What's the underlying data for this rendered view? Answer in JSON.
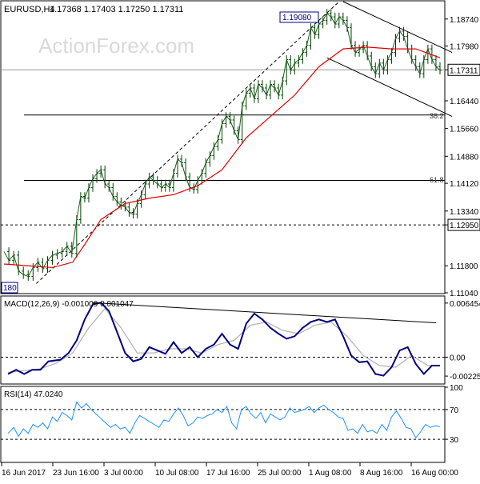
{
  "chart_data": {
    "type": "candlestick",
    "symbol": "EURUSD,H4",
    "ohlc_readout": "1.17368 1.17403 1.17250 1.17311",
    "watermark": "ActionForex.com",
    "price_axis": {
      "ticks": [
        1.1874,
        1.1798,
        1.17311,
        1.1644,
        1.1566,
        1.1488,
        1.1412,
        1.1334,
        1.1295,
        1.118,
        1.1104
      ],
      "tick_labels": [
        "1.18740",
        "1.17980",
        "1.17311",
        "1.16440",
        "1.15660",
        "1.14880",
        "1.14120",
        "1.13340",
        "1.12950",
        "1.11800",
        "1.11040"
      ],
      "highlighted": [
        "1.17311",
        "1.12950"
      ],
      "range": [
        1.1104,
        1.1923
      ]
    },
    "x_axis": {
      "labels": [
        "16 Jun 2017",
        "23 Jun 16:00",
        "3 Jul 00:00",
        "10 Jul 08:00",
        "17 Jul 16:00",
        "25 Jul 00:00",
        "1 Aug 08:00",
        "8 Aug 16:00",
        "16 Aug 00:00"
      ]
    },
    "price_labels": {
      "high": "1.19080",
      "low": "180",
      "fib_382": "38.2",
      "fib_618": "61.8"
    },
    "price_levels": {
      "last": 1.17311,
      "support": 1.1295,
      "fib_382": 1.1604,
      "fib_618": 1.142,
      "high": 1.1908
    },
    "price_path": [
      [
        0,
        1.122
      ],
      [
        6,
        1.1195
      ],
      [
        12,
        1.121
      ],
      [
        18,
        1.1165
      ],
      [
        24,
        1.1155
      ],
      [
        30,
        1.115
      ],
      [
        36,
        1.1175
      ],
      [
        42,
        1.119
      ],
      [
        48,
        1.1172
      ],
      [
        54,
        1.1195
      ],
      [
        60,
        1.121
      ],
      [
        66,
        1.1215
      ],
      [
        72,
        1.122
      ],
      [
        78,
        1.1235
      ],
      [
        84,
        1.1215
      ],
      [
        90,
        1.131
      ],
      [
        95,
        1.1375
      ],
      [
        100,
        1.137
      ],
      [
        105,
        1.14
      ],
      [
        110,
        1.1425
      ],
      [
        115,
        1.144
      ],
      [
        120,
        1.145
      ],
      [
        125,
        1.141
      ],
      [
        130,
        1.14
      ],
      [
        135,
        1.1375
      ],
      [
        140,
        1.136
      ],
      [
        145,
        1.135
      ],
      [
        150,
        1.1345
      ],
      [
        155,
        1.133
      ],
      [
        160,
        1.1325
      ],
      [
        165,
        1.1355
      ],
      [
        170,
        1.138
      ],
      [
        175,
        1.141
      ],
      [
        180,
        1.143
      ],
      [
        185,
        1.142
      ],
      [
        190,
        1.141
      ],
      [
        195,
        1.14
      ],
      [
        200,
        1.141
      ],
      [
        205,
        1.14
      ],
      [
        210,
        1.144
      ],
      [
        215,
        1.148
      ],
      [
        220,
        1.147
      ],
      [
        225,
        1.143
      ],
      [
        230,
        1.14
      ],
      [
        235,
        1.1395
      ],
      [
        240,
        1.142
      ],
      [
        245,
        1.144
      ],
      [
        250,
        1.147
      ],
      [
        255,
        1.149
      ],
      [
        260,
        1.1515
      ],
      [
        265,
        1.1535
      ],
      [
        270,
        1.158
      ],
      [
        275,
        1.16
      ],
      [
        280,
        1.159
      ],
      [
        285,
        1.156
      ],
      [
        290,
        1.1535
      ],
      [
        295,
        1.163
      ],
      [
        300,
        1.1665
      ],
      [
        305,
        1.168
      ],
      [
        310,
        1.165
      ],
      [
        315,
        1.169
      ],
      [
        320,
        1.168
      ],
      [
        325,
        1.166
      ],
      [
        330,
        1.169
      ],
      [
        335,
        1.168
      ],
      [
        340,
        1.166
      ],
      [
        345,
        1.17
      ],
      [
        350,
        1.176
      ],
      [
        355,
        1.173
      ],
      [
        360,
        1.175
      ],
      [
        365,
        1.176
      ],
      [
        370,
        1.178
      ],
      [
        375,
        1.18
      ],
      [
        380,
        1.185
      ],
      [
        385,
        1.183
      ],
      [
        390,
        1.186
      ],
      [
        395,
        1.187
      ],
      [
        400,
        1.189
      ],
      [
        405,
        1.188
      ],
      [
        410,
        1.186
      ],
      [
        415,
        1.188
      ],
      [
        420,
        1.187
      ],
      [
        425,
        1.185
      ],
      [
        430,
        1.18
      ],
      [
        435,
        1.178
      ],
      [
        440,
        1.179
      ],
      [
        445,
        1.18
      ],
      [
        450,
        1.177
      ],
      [
        455,
        1.174
      ],
      [
        460,
        1.172
      ],
      [
        465,
        1.175
      ],
      [
        470,
        1.173
      ],
      [
        475,
        1.176
      ],
      [
        480,
        1.178
      ],
      [
        485,
        1.182
      ],
      [
        490,
        1.184
      ],
      [
        495,
        1.1825
      ],
      [
        500,
        1.179
      ],
      [
        505,
        1.176
      ],
      [
        510,
        1.174
      ],
      [
        515,
        1.172
      ],
      [
        520,
        1.176
      ],
      [
        525,
        1.179
      ],
      [
        530,
        1.176
      ],
      [
        535,
        1.174
      ],
      [
        540,
        1.173
      ]
    ],
    "ma_path": [
      [
        0,
        1.1185
      ],
      [
        30,
        1.118
      ],
      [
        60,
        1.1175
      ],
      [
        85,
        1.119
      ],
      [
        100,
        1.124
      ],
      [
        120,
        1.131
      ],
      [
        150,
        1.1355
      ],
      [
        180,
        1.137
      ],
      [
        210,
        1.138
      ],
      [
        240,
        1.1405
      ],
      [
        270,
        1.145
      ],
      [
        300,
        1.154
      ],
      [
        330,
        1.16
      ],
      [
        360,
        1.166
      ],
      [
        390,
        1.174
      ],
      [
        420,
        1.179
      ],
      [
        450,
        1.1795
      ],
      [
        480,
        1.179
      ],
      [
        510,
        1.179
      ],
      [
        540,
        1.1765
      ]
    ],
    "channel_upper": [
      [
        420,
        1.1923
      ],
      [
        555,
        1.178
      ]
    ],
    "channel_lower": [
      [
        400,
        1.1765
      ],
      [
        555,
        1.16
      ]
    ],
    "trend_dashed": [
      [
        40,
        1.113
      ],
      [
        415,
        1.1923
      ]
    ],
    "macd": {
      "label": "MACD(12,26,9) -0.001009 0.001047",
      "ticks": [
        0.006454,
        0.0,
        -0.002252
      ],
      "tick_labels": [
        "0.006454",
        "0.00",
        "-0.00225"
      ],
      "range": [
        -0.0031,
        0.0072
      ],
      "trend_line": [
        [
          110,
          0.0065
        ],
        [
          535,
          0.0041
        ]
      ],
      "main": [
        [
          5,
          -0.002
        ],
        [
          15,
          -0.0015
        ],
        [
          25,
          -0.002
        ],
        [
          35,
          -0.0015
        ],
        [
          45,
          -0.0015
        ],
        [
          55,
          -0.0005
        ],
        [
          70,
          -0.0003
        ],
        [
          80,
          0.0005
        ],
        [
          90,
          0.002
        ],
        [
          100,
          0.0045
        ],
        [
          110,
          0.0063
        ],
        [
          120,
          0.0065
        ],
        [
          130,
          0.0055
        ],
        [
          140,
          0.003
        ],
        [
          150,
          0.0005
        ],
        [
          160,
          -0.0005
        ],
        [
          170,
          -0.0002
        ],
        [
          180,
          0.0012
        ],
        [
          190,
          0.0008
        ],
        [
          200,
          0.0004
        ],
        [
          210,
          0.0018
        ],
        [
          220,
          0.0005
        ],
        [
          230,
          0.0012
        ],
        [
          240,
          0.0
        ],
        [
          250,
          0.001
        ],
        [
          260,
          0.0015
        ],
        [
          270,
          0.0028
        ],
        [
          280,
          0.0015
        ],
        [
          290,
          0.001
        ],
        [
          300,
          0.004
        ],
        [
          310,
          0.0052
        ],
        [
          320,
          0.0045
        ],
        [
          330,
          0.0035
        ],
        [
          340,
          0.0028
        ],
        [
          350,
          0.0022
        ],
        [
          360,
          0.0025
        ],
        [
          370,
          0.0035
        ],
        [
          380,
          0.0042
        ],
        [
          390,
          0.0045
        ],
        [
          400,
          0.0042
        ],
        [
          410,
          0.0045
        ],
        [
          420,
          0.0025
        ],
        [
          430,
          0.0002
        ],
        [
          440,
          -0.0006
        ],
        [
          450,
          -0.0005
        ],
        [
          460,
          -0.002
        ],
        [
          470,
          -0.0022
        ],
        [
          480,
          -0.0012
        ],
        [
          490,
          0.0008
        ],
        [
          500,
          0.0012
        ],
        [
          510,
          -0.0008
        ],
        [
          520,
          -0.002
        ],
        [
          530,
          -0.001
        ],
        [
          540,
          -0.001
        ]
      ],
      "signal": [
        [
          5,
          -0.0018
        ],
        [
          25,
          -0.0016
        ],
        [
          45,
          -0.0014
        ],
        [
          65,
          -0.0007
        ],
        [
          85,
          0.0005
        ],
        [
          105,
          0.0035
        ],
        [
          125,
          0.0058
        ],
        [
          145,
          0.0035
        ],
        [
          165,
          0.0005
        ],
        [
          185,
          0.0005
        ],
        [
          205,
          0.001
        ],
        [
          225,
          0.001
        ],
        [
          245,
          0.0005
        ],
        [
          265,
          0.0015
        ],
        [
          285,
          0.002
        ],
        [
          305,
          0.0038
        ],
        [
          325,
          0.0042
        ],
        [
          345,
          0.0032
        ],
        [
          365,
          0.0028
        ],
        [
          385,
          0.0038
        ],
        [
          405,
          0.0042
        ],
        [
          425,
          0.0025
        ],
        [
          445,
          0.0002
        ],
        [
          465,
          -0.001
        ],
        [
          485,
          -0.0012
        ],
        [
          505,
          0.0002
        ],
        [
          525,
          -0.001
        ],
        [
          540,
          -0.001
        ]
      ]
    },
    "rsi": {
      "label": "RSI(14) 47.0240",
      "ticks": [
        100,
        70,
        30
      ],
      "tick_labels": [
        "100",
        "70",
        "30"
      ],
      "range": [
        0,
        100
      ],
      "values": [
        [
          5,
          38
        ],
        [
          12,
          46
        ],
        [
          18,
          34
        ],
        [
          24,
          44
        ],
        [
          30,
          38
        ],
        [
          36,
          50
        ],
        [
          42,
          46
        ],
        [
          48,
          52
        ],
        [
          54,
          44
        ],
        [
          60,
          60
        ],
        [
          66,
          54
        ],
        [
          72,
          66
        ],
        [
          78,
          62
        ],
        [
          84,
          56
        ],
        [
          90,
          80
        ],
        [
          96,
          72
        ],
        [
          102,
          78
        ],
        [
          108,
          70
        ],
        [
          114,
          64
        ],
        [
          120,
          58
        ],
        [
          126,
          52
        ],
        [
          132,
          46
        ],
        [
          138,
          50
        ],
        [
          144,
          44
        ],
        [
          150,
          46
        ],
        [
          156,
          38
        ],
        [
          162,
          52
        ],
        [
          168,
          62
        ],
        [
          174,
          58
        ],
        [
          180,
          54
        ],
        [
          186,
          50
        ],
        [
          192,
          46
        ],
        [
          198,
          56
        ],
        [
          204,
          54
        ],
        [
          210,
          64
        ],
        [
          216,
          72
        ],
        [
          222,
          62
        ],
        [
          228,
          48
        ],
        [
          234,
          52
        ],
        [
          240,
          60
        ],
        [
          246,
          58
        ],
        [
          252,
          62
        ],
        [
          258,
          64
        ],
        [
          264,
          70
        ],
        [
          270,
          66
        ],
        [
          276,
          74
        ],
        [
          282,
          52
        ],
        [
          288,
          44
        ],
        [
          294,
          70
        ],
        [
          300,
          74
        ],
        [
          306,
          64
        ],
        [
          312,
          58
        ],
        [
          318,
          66
        ],
        [
          324,
          52
        ],
        [
          330,
          64
        ],
        [
          336,
          60
        ],
        [
          342,
          56
        ],
        [
          348,
          60
        ],
        [
          354,
          72
        ],
        [
          360,
          66
        ],
        [
          366,
          68
        ],
        [
          372,
          70
        ],
        [
          378,
          74
        ],
        [
          384,
          66
        ],
        [
          390,
          72
        ],
        [
          396,
          76
        ],
        [
          402,
          70
        ],
        [
          408,
          66
        ],
        [
          414,
          60
        ],
        [
          420,
          58
        ],
        [
          426,
          42
        ],
        [
          432,
          44
        ],
        [
          438,
          38
        ],
        [
          444,
          50
        ],
        [
          450,
          40
        ],
        [
          456,
          42
        ],
        [
          462,
          38
        ],
        [
          468,
          50
        ],
        [
          474,
          42
        ],
        [
          480,
          60
        ],
        [
          486,
          68
        ],
        [
          492,
          58
        ],
        [
          498,
          46
        ],
        [
          504,
          44
        ],
        [
          510,
          32
        ],
        [
          516,
          40
        ],
        [
          522,
          50
        ],
        [
          528,
          46
        ],
        [
          534,
          48
        ],
        [
          540,
          47
        ]
      ]
    }
  }
}
